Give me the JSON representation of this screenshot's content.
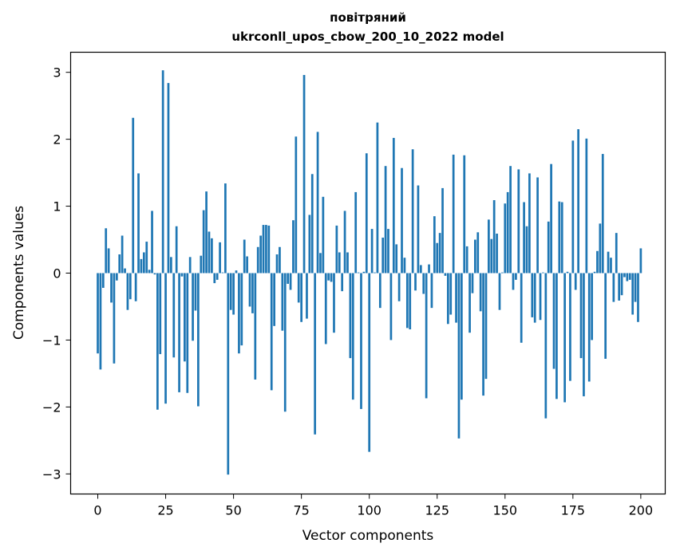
{
  "chart_data": {
    "type": "bar",
    "title": "повітряний",
    "subtitle": "ukrconll_upos_cbow_200_10_2022 model",
    "xlabel": "Vector components",
    "ylabel": "Components values",
    "xlim": [
      -10,
      209
    ],
    "ylim": [
      -3.3,
      3.3
    ],
    "xticks": [
      0,
      25,
      50,
      75,
      100,
      125,
      150,
      175,
      200
    ],
    "yticks": [
      -3,
      -2,
      -1,
      0,
      1,
      2,
      3
    ],
    "xtick_labels": [
      "0",
      "25",
      "50",
      "75",
      "100",
      "125",
      "150",
      "175",
      "200"
    ],
    "ytick_labels": [
      "−3",
      "−2",
      "−1",
      "0",
      "1",
      "2",
      "3"
    ],
    "grid": false,
    "color": "#1f77b4",
    "values": [
      -1.2,
      -1.44,
      -0.22,
      0.67,
      0.37,
      -0.44,
      -1.35,
      -0.11,
      0.28,
      0.56,
      0.07,
      -0.55,
      -0.39,
      2.32,
      -0.42,
      1.49,
      0.21,
      0.31,
      0.47,
      0.05,
      0.93,
      -0.02,
      -2.04,
      -1.21,
      3.03,
      -1.95,
      2.84,
      0.24,
      -1.26,
      0.7,
      -1.78,
      -0.05,
      -1.32,
      -1.79,
      0.24,
      -1.01,
      -0.56,
      -1.99,
      0.26,
      0.94,
      1.22,
      0.62,
      0.52,
      -0.15,
      -0.1,
      0.46,
      0.01,
      1.34,
      -3.01,
      -0.55,
      -0.62,
      0.04,
      -1.2,
      -1.08,
      0.5,
      0.25,
      -0.5,
      -0.6,
      -1.59,
      0.39,
      0.56,
      0.72,
      0.72,
      0.71,
      -1.75,
      -0.79,
      0.28,
      0.39,
      -0.86,
      -2.07,
      -0.16,
      -0.25,
      0.79,
      2.04,
      -0.44,
      -0.73,
      2.96,
      -0.68,
      0.87,
      1.48,
      -2.41,
      2.11,
      0.3,
      1.14,
      -1.06,
      -0.11,
      -0.13,
      -0.89,
      0.71,
      0.31,
      -0.27,
      0.93,
      0.31,
      -1.27,
      -1.89,
      1.21,
      0.01,
      -2.03,
      0.02,
      1.79,
      -2.67,
      0.66,
      0.01,
      2.25,
      -0.52,
      0.53,
      1.6,
      0.66,
      -1.0,
      2.02,
      0.43,
      -0.42,
      1.57,
      0.23,
      -0.82,
      -0.84,
      1.85,
      -0.26,
      1.31,
      0.12,
      -0.31,
      -1.87,
      0.13,
      -0.52,
      0.85,
      0.45,
      0.6,
      1.27,
      -0.04,
      -0.76,
      -0.62,
      1.77,
      -0.74,
      -2.47,
      -1.89,
      1.76,
      0.4,
      -0.89,
      -0.3,
      0.5,
      0.61,
      -0.57,
      -1.83,
      -1.58,
      0.8,
      0.51,
      1.09,
      0.59,
      -0.55,
      0.01,
      1.04,
      1.21,
      1.6,
      -0.25,
      -0.1,
      1.55,
      -1.04,
      1.06,
      0.7,
      1.49,
      -0.66,
      -0.74,
      1.43,
      -0.7,
      0.01,
      -2.17,
      0.77,
      1.63,
      -1.43,
      -1.88,
      1.07,
      1.06,
      -1.93,
      0.02,
      -1.61,
      1.98,
      -0.25,
      2.15,
      -1.27,
      -1.84,
      2.01,
      -1.62,
      -1.0,
      0.02,
      0.33,
      0.74,
      1.78,
      -1.28,
      0.32,
      0.23,
      -0.43,
      0.6,
      -0.41,
      -0.33,
      -0.06,
      -0.12,
      -0.1,
      -0.62,
      -0.43,
      -0.73,
      0.37
    ]
  }
}
